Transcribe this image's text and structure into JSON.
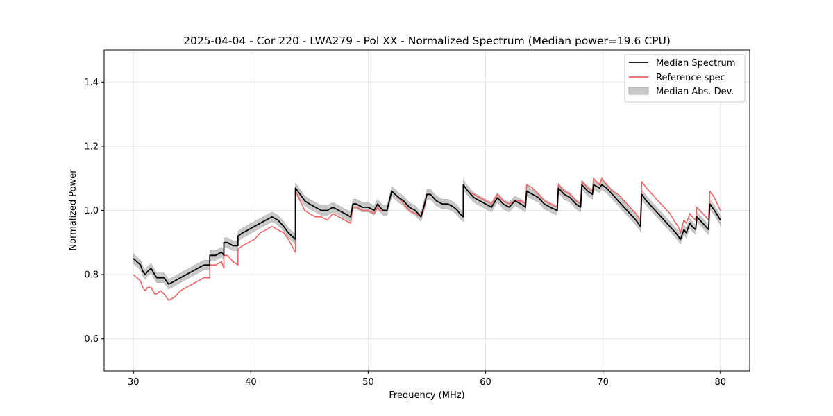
{
  "chart_data": {
    "type": "line",
    "title": "2025-04-04 - Cor 220 - LWA279 - Pol XX - Normalized Spectrum (Median power=19.6 CPU)",
    "xlabel": "Frequency (MHz)",
    "ylabel": "Normalized Power",
    "xlim": [
      27.5,
      82.5
    ],
    "ylim": [
      0.5,
      1.5
    ],
    "xticks": [
      30,
      40,
      50,
      60,
      70,
      80
    ],
    "yticks": [
      0.6,
      0.8,
      1.0,
      1.2,
      1.4
    ],
    "xtick_labels": [
      "30",
      "40",
      "50",
      "60",
      "70",
      "80"
    ],
    "ytick_labels": [
      "0.6",
      "0.8",
      "1.0",
      "1.2",
      "1.4"
    ],
    "grid": true,
    "legend_position": "top-right",
    "legend": [
      {
        "label": "Median Spectrum",
        "color": "#000000",
        "kind": "line"
      },
      {
        "label": "Reference spec",
        "color": "#f06464",
        "kind": "line"
      },
      {
        "label": "Median Abs. Dev.",
        "color": "#c8c8c8",
        "kind": "band"
      }
    ],
    "mad_halfwidth": 0.015,
    "series": [
      {
        "name": "Median Spectrum",
        "color": "#000000",
        "x": [
          30.0,
          30.3,
          30.6,
          30.8,
          31.0,
          31.2,
          31.5,
          31.8,
          32.0,
          32.3,
          32.6,
          32.8,
          33.0,
          33.5,
          34.0,
          34.5,
          35.0,
          35.5,
          36.0,
          36.5,
          36.5,
          37.0,
          37.5,
          37.7,
          37.7,
          38.0,
          38.5,
          38.9,
          38.9,
          39.3,
          39.8,
          40.3,
          40.8,
          41.3,
          41.8,
          42.3,
          42.8,
          43.2,
          43.8,
          43.8,
          44.2,
          44.6,
          45.0,
          45.5,
          46.0,
          46.5,
          47.0,
          47.5,
          48.0,
          48.5,
          48.7,
          49.0,
          49.5,
          50.0,
          50.5,
          50.8,
          51.0,
          51.3,
          51.6,
          52.0,
          52.3,
          52.6,
          53.0,
          53.5,
          54.0,
          54.5,
          54.8,
          55.0,
          55.3,
          55.8,
          56.3,
          56.8,
          57.3,
          57.6,
          57.8,
          58.1,
          58.1,
          58.5,
          59.0,
          59.5,
          60.0,
          60.5,
          61.0,
          61.5,
          62.0,
          62.5,
          63.0,
          63.4,
          63.5,
          64.0,
          64.5,
          65.0,
          65.5,
          66.1,
          66.2,
          66.7,
          67.2,
          67.7,
          68.1,
          68.2,
          68.7,
          69.1,
          69.2,
          69.7,
          69.9,
          70.3,
          70.8,
          71.3,
          71.8,
          72.3,
          72.8,
          73.2,
          73.3,
          73.7,
          74.2,
          74.7,
          75.2,
          75.7,
          76.2,
          76.4,
          76.6,
          76.9,
          77.1,
          77.4,
          77.6,
          77.9,
          78.0,
          78.5,
          79.0,
          79.1,
          79.5,
          80.0
        ],
        "y": [
          0.85,
          0.84,
          0.83,
          0.81,
          0.8,
          0.81,
          0.82,
          0.8,
          0.79,
          0.79,
          0.79,
          0.78,
          0.77,
          0.78,
          0.79,
          0.8,
          0.81,
          0.82,
          0.83,
          0.83,
          0.86,
          0.86,
          0.87,
          0.86,
          0.9,
          0.9,
          0.89,
          0.89,
          0.92,
          0.93,
          0.94,
          0.95,
          0.96,
          0.97,
          0.98,
          0.97,
          0.95,
          0.93,
          0.91,
          1.07,
          1.05,
          1.03,
          1.02,
          1.01,
          1.0,
          1.0,
          1.01,
          1.0,
          0.99,
          0.98,
          1.02,
          1.02,
          1.01,
          1.01,
          1.0,
          1.02,
          1.01,
          1.0,
          1.0,
          1.06,
          1.05,
          1.04,
          1.03,
          1.01,
          1.0,
          0.98,
          1.02,
          1.05,
          1.05,
          1.03,
          1.02,
          1.02,
          1.01,
          1.0,
          0.99,
          0.98,
          1.08,
          1.06,
          1.04,
          1.03,
          1.02,
          1.01,
          1.04,
          1.02,
          1.01,
          1.03,
          1.02,
          1.01,
          1.06,
          1.05,
          1.04,
          1.02,
          1.01,
          1.0,
          1.07,
          1.05,
          1.04,
          1.02,
          1.01,
          1.08,
          1.06,
          1.05,
          1.08,
          1.07,
          1.08,
          1.07,
          1.05,
          1.03,
          1.01,
          0.99,
          0.97,
          0.95,
          1.05,
          1.03,
          1.01,
          0.99,
          0.97,
          0.95,
          0.93,
          0.92,
          0.91,
          0.94,
          0.93,
          0.96,
          0.95,
          0.94,
          0.98,
          0.96,
          0.94,
          1.02,
          1.0,
          0.97
        ]
      },
      {
        "name": "Reference spec",
        "color": "#f06464",
        "x": [
          30.0,
          30.3,
          30.6,
          30.8,
          31.0,
          31.2,
          31.5,
          31.8,
          32.0,
          32.3,
          32.6,
          32.8,
          33.0,
          33.5,
          34.0,
          34.5,
          35.0,
          35.5,
          36.0,
          36.5,
          36.5,
          37.0,
          37.5,
          37.7,
          37.7,
          38.0,
          38.5,
          38.9,
          38.9,
          39.3,
          39.8,
          40.3,
          40.8,
          41.3,
          41.8,
          42.3,
          42.8,
          43.2,
          43.8,
          43.8,
          44.2,
          44.6,
          45.0,
          45.5,
          46.0,
          46.5,
          47.0,
          47.5,
          48.0,
          48.5,
          48.7,
          49.0,
          49.5,
          50.0,
          50.5,
          50.8,
          51.0,
          51.3,
          51.6,
          52.0,
          52.3,
          52.6,
          53.0,
          53.5,
          54.0,
          54.5,
          54.8,
          55.0,
          55.3,
          55.8,
          56.3,
          56.8,
          57.3,
          57.6,
          57.8,
          58.1,
          58.1,
          58.5,
          59.0,
          59.5,
          60.0,
          60.5,
          61.0,
          61.5,
          62.0,
          62.5,
          63.0,
          63.4,
          63.5,
          64.0,
          64.5,
          65.0,
          65.5,
          66.1,
          66.2,
          66.7,
          67.2,
          67.7,
          68.1,
          68.2,
          68.7,
          69.1,
          69.2,
          69.7,
          69.9,
          70.3,
          70.8,
          71.3,
          71.8,
          72.3,
          72.8,
          73.2,
          73.3,
          73.7,
          74.2,
          74.7,
          75.2,
          75.7,
          76.2,
          76.4,
          76.6,
          76.9,
          77.1,
          77.4,
          77.6,
          77.9,
          78.0,
          78.5,
          79.0,
          79.1,
          79.5,
          80.0
        ],
        "y": [
          0.8,
          0.79,
          0.78,
          0.76,
          0.75,
          0.76,
          0.76,
          0.74,
          0.74,
          0.75,
          0.74,
          0.73,
          0.72,
          0.73,
          0.75,
          0.76,
          0.77,
          0.78,
          0.79,
          0.79,
          0.83,
          0.83,
          0.84,
          0.82,
          0.86,
          0.86,
          0.84,
          0.83,
          0.88,
          0.89,
          0.9,
          0.91,
          0.93,
          0.94,
          0.95,
          0.94,
          0.93,
          0.91,
          0.87,
          1.06,
          1.03,
          1.0,
          0.99,
          0.98,
          0.98,
          0.97,
          0.99,
          0.98,
          0.97,
          0.96,
          1.01,
          1.01,
          1.0,
          1.0,
          0.99,
          1.01,
          1.0,
          1.0,
          1.0,
          1.06,
          1.05,
          1.04,
          1.02,
          1.0,
          0.99,
          0.98,
          1.01,
          1.05,
          1.05,
          1.03,
          1.02,
          1.02,
          1.01,
          1.0,
          0.99,
          0.98,
          1.08,
          1.06,
          1.05,
          1.04,
          1.03,
          1.02,
          1.05,
          1.03,
          1.02,
          1.03,
          1.03,
          1.02,
          1.08,
          1.07,
          1.05,
          1.03,
          1.02,
          1.01,
          1.08,
          1.06,
          1.05,
          1.03,
          1.02,
          1.09,
          1.07,
          1.06,
          1.1,
          1.08,
          1.1,
          1.08,
          1.06,
          1.05,
          1.03,
          1.01,
          0.99,
          0.97,
          1.09,
          1.07,
          1.05,
          1.03,
          1.01,
          0.99,
          0.96,
          0.95,
          0.93,
          0.97,
          0.96,
          0.99,
          0.98,
          0.97,
          1.01,
          0.99,
          0.97,
          1.06,
          1.04,
          1.0
        ]
      }
    ]
  }
}
